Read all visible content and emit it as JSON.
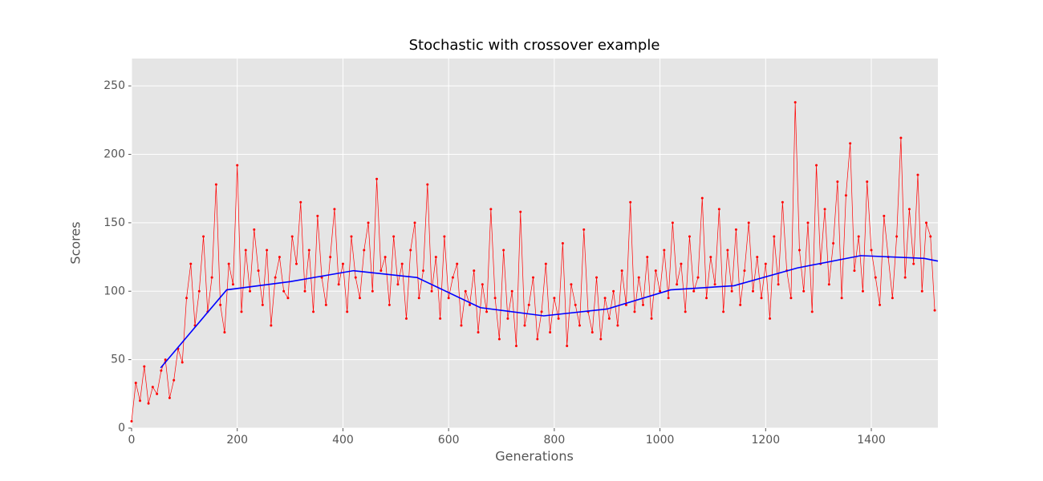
{
  "chart_data": {
    "type": "line",
    "title": "Stochastic with crossover example",
    "x_label": "Generations",
    "y_label": "Scores",
    "xlim": [
      0,
      1526
    ],
    "ylim": [
      0,
      270
    ],
    "xticks": [
      0,
      200,
      400,
      600,
      800,
      1000,
      1200,
      1400
    ],
    "yticks": [
      0,
      50,
      100,
      150,
      200,
      250
    ],
    "grid": true,
    "background": "#e5e5e5",
    "series": [
      {
        "color": "#ff0000",
        "markers": true,
        "x": [
          0,
          8,
          16,
          24,
          32,
          40,
          48,
          56,
          64,
          72,
          80,
          88,
          96,
          104,
          112,
          120,
          128,
          136,
          144,
          152,
          160,
          168,
          176,
          184,
          192,
          200,
          208,
          216,
          224,
          232,
          240,
          248,
          256,
          264,
          272,
          280,
          288,
          296,
          304,
          312,
          320,
          328,
          336,
          344,
          352,
          360,
          368,
          376,
          384,
          392,
          400,
          408,
          416,
          424,
          432,
          440,
          448,
          456,
          464,
          472,
          480,
          488,
          496,
          504,
          512,
          520,
          528,
          536,
          544,
          552,
          560,
          568,
          576,
          584,
          592,
          600,
          608,
          616,
          624,
          632,
          640,
          648,
          656,
          664,
          672,
          680,
          688,
          696,
          704,
          712,
          720,
          728,
          736,
          744,
          752,
          760,
          768,
          776,
          784,
          792,
          800,
          808,
          816,
          824,
          832,
          840,
          848,
          856,
          864,
          872,
          880,
          888,
          896,
          904,
          912,
          920,
          928,
          936,
          944,
          952,
          960,
          968,
          976,
          984,
          992,
          1000,
          1008,
          1016,
          1024,
          1032,
          1040,
          1048,
          1056,
          1064,
          1072,
          1080,
          1088,
          1096,
          1104,
          1112,
          1120,
          1128,
          1136,
          1144,
          1152,
          1160,
          1168,
          1176,
          1184,
          1192,
          1200,
          1208,
          1216,
          1224,
          1232,
          1240,
          1248,
          1256,
          1264,
          1272,
          1280,
          1288,
          1296,
          1304,
          1312,
          1320,
          1328,
          1336,
          1344,
          1352,
          1360,
          1368,
          1376,
          1384,
          1392,
          1400,
          1408,
          1416,
          1424,
          1432,
          1440,
          1448,
          1456,
          1464,
          1472,
          1480,
          1488,
          1496,
          1504,
          1512,
          1520
        ],
        "values": [
          5,
          33,
          20,
          45,
          18,
          30,
          25,
          42,
          50,
          22,
          35,
          58,
          48,
          95,
          120,
          75,
          100,
          140,
          85,
          110,
          178,
          90,
          70,
          120,
          105,
          192,
          85,
          130,
          100,
          145,
          115,
          90,
          130,
          75,
          110,
          125,
          100,
          95,
          140,
          120,
          165,
          100,
          130,
          85,
          155,
          110,
          90,
          125,
          160,
          105,
          120,
          85,
          140,
          110,
          95,
          130,
          150,
          100,
          182,
          115,
          125,
          90,
          140,
          105,
          120,
          80,
          130,
          150,
          95,
          115,
          178,
          100,
          125,
          80,
          140,
          95,
          110,
          120,
          75,
          100,
          90,
          115,
          70,
          105,
          85,
          160,
          95,
          65,
          130,
          80,
          100,
          60,
          158,
          75,
          90,
          110,
          65,
          85,
          120,
          70,
          95,
          80,
          135,
          60,
          105,
          90,
          75,
          145,
          85,
          70,
          110,
          65,
          95,
          80,
          100,
          75,
          115,
          90,
          165,
          85,
          110,
          90,
          125,
          80,
          115,
          100,
          130,
          95,
          150,
          105,
          120,
          85,
          140,
          100,
          110,
          168,
          95,
          125,
          105,
          160,
          85,
          130,
          100,
          145,
          90,
          115,
          150,
          100,
          125,
          95,
          120,
          80,
          140,
          105,
          165,
          115,
          95,
          238,
          130,
          100,
          150,
          85,
          192,
          120,
          160,
          105,
          135,
          180,
          95,
          170,
          208,
          115,
          140,
          100,
          180,
          130,
          110,
          90,
          155,
          125,
          95,
          140,
          212,
          110,
          160,
          120,
          185,
          100,
          150,
          140,
          86
        ]
      },
      {
        "color": "#0000ff",
        "markers": false,
        "x": [
          55,
          180,
          300,
          420,
          540,
          660,
          780,
          900,
          1020,
          1140,
          1260,
          1380,
          1500,
          1526
        ],
        "values": [
          44,
          101,
          107,
          115,
          110,
          88,
          82,
          87,
          101,
          104,
          117,
          126,
          124,
          122
        ]
      }
    ]
  }
}
